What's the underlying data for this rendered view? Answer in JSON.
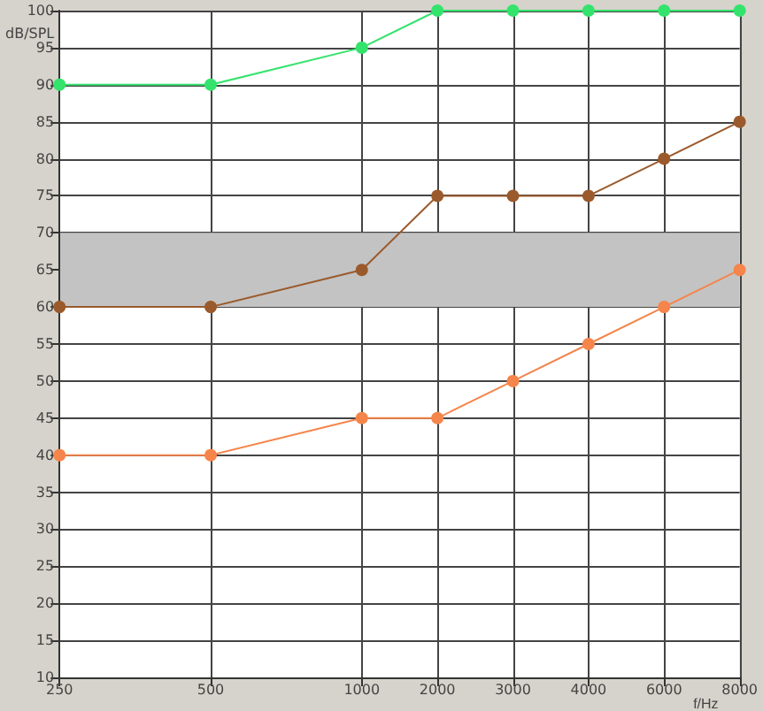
{
  "chart_data": {
    "type": "line",
    "xlabel": "f/Hz",
    "ylabel": "dB/SPL",
    "categories": [
      "250",
      null,
      "500",
      null,
      "1000",
      "2000",
      "3000",
      "4000",
      "6000",
      "8000"
    ],
    "series": [
      {
        "color": "#33e36b",
        "values": [
          90,
          null,
          90,
          null,
          95,
          100,
          100,
          100,
          100,
          100
        ]
      },
      {
        "color": "#9b5a2c",
        "values": [
          60,
          null,
          60,
          null,
          65,
          75,
          75,
          75,
          80,
          85
        ]
      },
      {
        "color": "#f5854a",
        "values": [
          40,
          null,
          40,
          null,
          45,
          45,
          50,
          55,
          60,
          65
        ]
      }
    ],
    "ylim": [
      10,
      100
    ],
    "yticks": [
      10,
      15,
      20,
      25,
      30,
      35,
      40,
      45,
      50,
      55,
      60,
      65,
      70,
      75,
      80,
      85,
      90,
      95,
      100
    ],
    "bands": [
      {
        "axis": "y",
        "from": 60,
        "to": 70,
        "color": "#c3c3c3"
      }
    ],
    "grid": true,
    "marker": "circle",
    "line_style": "solid"
  }
}
